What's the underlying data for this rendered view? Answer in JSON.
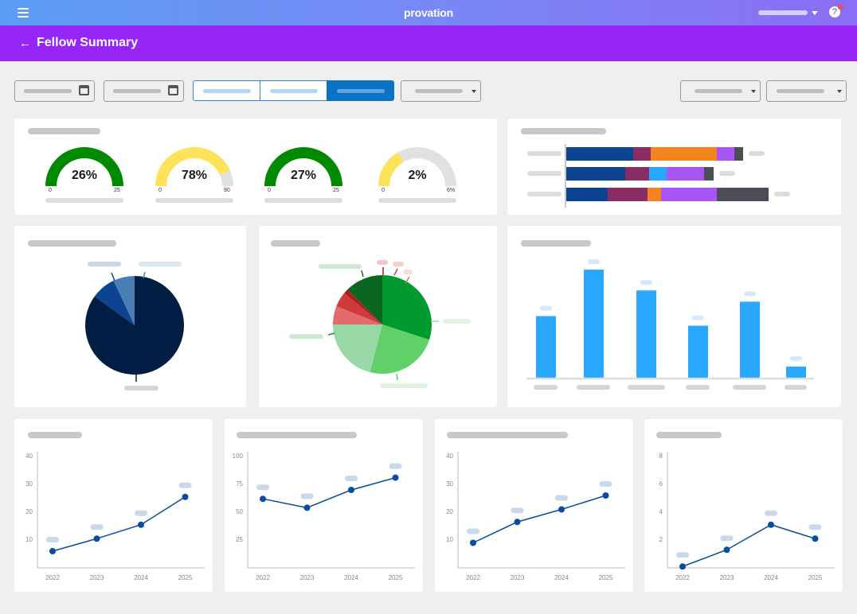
{
  "app": {
    "logo": "provation"
  },
  "header": {
    "title": "Fellow Summary"
  },
  "icons": {
    "menu": "menu-icon",
    "back": "arrow-left-icon",
    "help": "help-icon",
    "calendar": "calendar-icon",
    "caret": "chevron-down-icon"
  },
  "colors": {
    "header_bg": "#9526f7",
    "gauge_green": "#008a00",
    "gauge_yellow": "#fde35a",
    "gauge_track": "#e1e1e1",
    "bar_blue": "#2aa7ff",
    "line_blue": "#0a4c9c",
    "stack": [
      "#0d4491",
      "#8a2d63",
      "#f5841f",
      "#2aa7ff",
      "#a855f7",
      "#4d4d58"
    ]
  },
  "gauges": [
    {
      "value": 26,
      "label": "26%",
      "min": "0",
      "max": "25",
      "color": "#008a00"
    },
    {
      "value": 78,
      "label": "78%",
      "min": "0",
      "max": "90",
      "color": "#fde35a"
    },
    {
      "value": 27,
      "label": "27%",
      "min": "0",
      "max": "25",
      "color": "#008a00"
    },
    {
      "value": 2,
      "label": "2%",
      "min": "0",
      "max": "6%",
      "color": "#fde35a"
    }
  ],
  "chart_data": [
    {
      "type": "bar",
      "stacked": true,
      "orientation": "horizontal",
      "series_colors": [
        "#0d4491",
        "#8a2d63",
        "#f5841f",
        "#2aa7ff",
        "#a855f7",
        "#4d4d58"
      ],
      "rows": [
        [
          84,
          22,
          83,
          0,
          22,
          11
        ],
        [
          74,
          30,
          0,
          22,
          47,
          12
        ],
        [
          52,
          50,
          17,
          0,
          70,
          65
        ]
      ]
    },
    {
      "type": "pie",
      "slices": [
        {
          "value": 85,
          "color": "#001e44"
        },
        {
          "value": 8,
          "color": "#0d4491"
        },
        {
          "value": 7,
          "color": "#4a7fb5"
        }
      ]
    },
    {
      "type": "pie",
      "slices": [
        {
          "value": 30,
          "color": "#009a2e"
        },
        {
          "value": 24,
          "color": "#5fd168"
        },
        {
          "value": 21,
          "color": "#98d8a6"
        },
        {
          "value": 6,
          "color": "#e26b6b"
        },
        {
          "value": 5,
          "color": "#cf3a3a"
        },
        {
          "value": 1.5,
          "color": "#b81818"
        },
        {
          "value": 12.5,
          "color": "#0b6621"
        }
      ]
    },
    {
      "type": "bar",
      "values": [
        77,
        135,
        109,
        65,
        95,
        14
      ],
      "ylim": [
        0,
        140
      ],
      "color": "#2aa7ff"
    },
    {
      "type": "line",
      "x": [
        "2022",
        "2023",
        "2024",
        "2025"
      ],
      "values": [
        6,
        10.5,
        15.5,
        25.5
      ],
      "ylim": [
        0,
        40
      ],
      "yticks": [
        "10",
        "20",
        "30",
        "40"
      ]
    },
    {
      "type": "line",
      "x": [
        "2022",
        "2023",
        "2024",
        "2025"
      ],
      "values": [
        62,
        54,
        70,
        81
      ],
      "ylim": [
        0,
        100
      ],
      "yticks": [
        "25",
        "50",
        "75",
        "100"
      ]
    },
    {
      "type": "line",
      "x": [
        "2022",
        "2023",
        "2024",
        "2025"
      ],
      "values": [
        9,
        16.5,
        21,
        26
      ],
      "ylim": [
        0,
        40
      ],
      "yticks": [
        "10",
        "20",
        "30",
        "40"
      ]
    },
    {
      "type": "line",
      "x": [
        "2022",
        "2023",
        "2024",
        "2025"
      ],
      "values": [
        0.1,
        1.3,
        3.1,
        2.1
      ],
      "ylim": [
        0,
        8
      ],
      "yticks": [
        "2",
        "4",
        "6",
        "8"
      ]
    }
  ]
}
